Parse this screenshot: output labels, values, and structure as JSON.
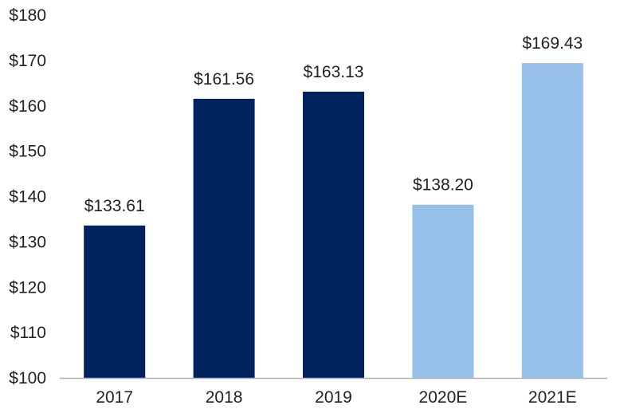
{
  "chart_data": {
    "type": "bar",
    "title": "",
    "xlabel": "",
    "ylabel": "",
    "categories": [
      "2017",
      "2018",
      "2019",
      "2020E",
      "2021E"
    ],
    "values": [
      133.61,
      161.56,
      163.13,
      138.2,
      169.43
    ],
    "data_labels": [
      "$133.61",
      "$161.56",
      "$163.13",
      "$138.20",
      "$169.43"
    ],
    "bar_colors": [
      "#00225f",
      "#00225f",
      "#00225f",
      "#96c0ea",
      "#96c0ea"
    ],
    "axis_color": "#b0b0b0",
    "ylim": [
      100,
      180
    ],
    "yticks": [
      100,
      110,
      120,
      130,
      140,
      150,
      160,
      170,
      180
    ],
    "ytick_labels": [
      "$100",
      "$110",
      "$120",
      "$130",
      "$140",
      "$150",
      "$160",
      "$170",
      "$180"
    ],
    "grid": false,
    "legend": "none"
  }
}
